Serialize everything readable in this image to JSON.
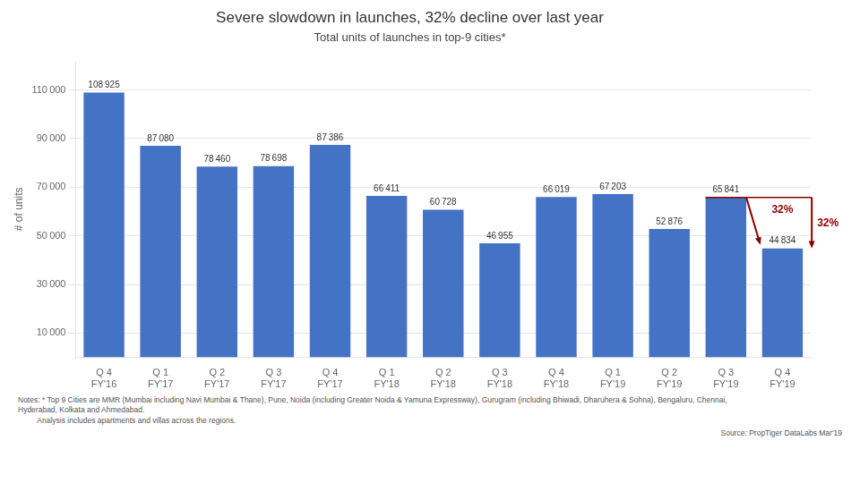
{
  "chart_data": {
    "type": "bar",
    "title": "Severe slowdown in launches, 32% decline over last year",
    "subtitle": "Total units of launches in top-9 cities*",
    "ylabel": "# of units",
    "categories": [
      "Q 4\nFY'16",
      "Q 1\nFY'17",
      "Q 2\nFY'17",
      "Q 3\nFY'17",
      "Q 4\nFY'17",
      "Q 1\nFY'18",
      "Q 2\nFY'18",
      "Q 3\nFY'18",
      "Q 4\nFY'18",
      "Q 1\nFY'19",
      "Q 2\nFY'19",
      "Q 3\nFY'19",
      "Q 4\nFY'19"
    ],
    "values": [
      108925,
      87080,
      78460,
      78698,
      87386,
      66411,
      60728,
      46955,
      66019,
      67203,
      52876,
      65841,
      44834
    ],
    "value_labels": [
      "108 925",
      "87 080",
      "78 460",
      "78 698",
      "87 386",
      "66 411",
      "60 728",
      "46 955",
      "66 019",
      "67 203",
      "52 876",
      "65 841",
      "44 834"
    ],
    "data_labels": true,
    "color": "#4472C4",
    "ylim": [
      0,
      122000
    ],
    "yticks": [
      {
        "value": 10000,
        "label": "10 000"
      },
      {
        "value": 30000,
        "label": "30 000"
      },
      {
        "value": 50000,
        "label": "50 000"
      },
      {
        "value": 70000,
        "label": "70 000"
      },
      {
        "value": 90000,
        "label": "90 000"
      },
      {
        "value": 110000,
        "label": "110 000"
      }
    ],
    "grid": true,
    "annotations": [
      {
        "text": "32%",
        "color": "#8B0000"
      },
      {
        "text": "32%",
        "color": "#8B0000"
      }
    ],
    "notes": [
      "Notes: * Top 9 Cities are MMR (Mumbai including Navi Mumbai & Thane), Pune, Noida (including Greater Noida & Yamuna Expressway), Gurugram (including Bhiwadi, Dharuhera & Sohna), Bengaluru, Chennai,",
      "Hyderabad, Kolkata and Ahmedabad.",
      "         Analysis includes apartments and villas across the regions."
    ],
    "source": "Source: PropTiger DataLabs Mar'19"
  }
}
